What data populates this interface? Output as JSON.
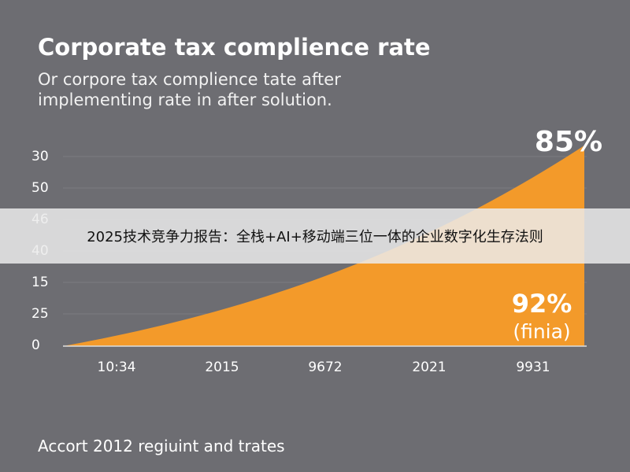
{
  "header": {
    "title": "Corporate tax complience rate",
    "subtitle_lines": [
      "Or corpore tax complience tate after",
      "implementing rate in after solution."
    ]
  },
  "y_labels": [
    "30",
    "50",
    "46",
    "40",
    "15",
    "25",
    "0"
  ],
  "x_labels": [
    "10:34",
    "2015",
    "9672",
    "2021",
    "9931"
  ],
  "annotations": {
    "top": "85%",
    "bottom": "92%",
    "bottom_note": "(finia)"
  },
  "footer": "Accort 2012 regiuint and trates",
  "banner": "2025技术竞争力报告：全栈+AI+移动端三位一体的企业数字化生存法则"
}
